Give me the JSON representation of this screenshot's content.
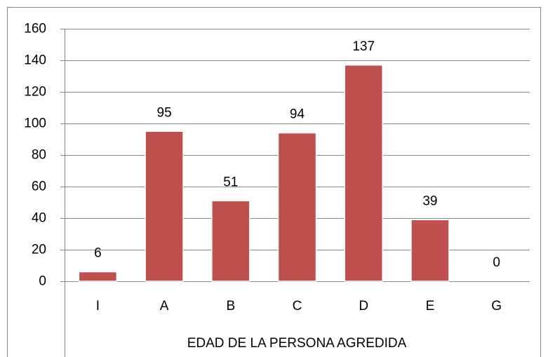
{
  "chart_data": {
    "type": "bar",
    "x_label": "EDAD DE LA PERSONA AGREDIDA",
    "categories": [
      "I",
      "A",
      "B",
      "C",
      "D",
      "E",
      "G"
    ],
    "values": [
      6,
      95,
      51,
      94,
      137,
      39,
      0
    ],
    "color": "#c0504d",
    "ylim": [
      0,
      160
    ],
    "yticks": [
      0,
      20,
      40,
      60,
      80,
      100,
      120,
      140,
      160
    ],
    "grid": true
  }
}
